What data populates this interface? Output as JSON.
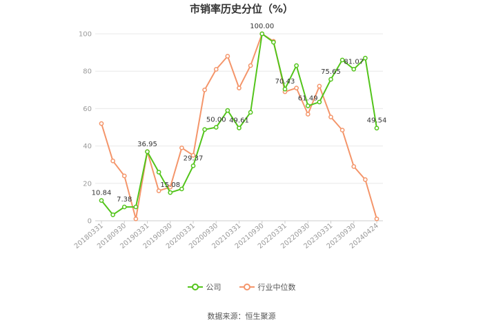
{
  "chart_data": {
    "type": "line",
    "title": "市销率历史分位（%）",
    "xlabel": "",
    "ylabel": "",
    "ylim": [
      0,
      100
    ],
    "yticks": [
      0,
      20,
      40,
      60,
      80,
      100
    ],
    "grid": true,
    "legend_position": "bottom",
    "x_ticks": [
      "20180331",
      "20180930",
      "20190331",
      "20190930",
      "20200331",
      "20200930",
      "20210331",
      "20210930",
      "20220331",
      "20220930",
      "20230331",
      "20230930",
      "20240424"
    ],
    "x": [
      "20180331",
      "20180630",
      "20180930",
      "20181231",
      "20190331",
      "20190630",
      "20190930",
      "20191231",
      "20200331",
      "20200630",
      "20200930",
      "20201231",
      "20210331",
      "20210630",
      "20210930",
      "20211231",
      "20220331",
      "20220630",
      "20220930",
      "20221231",
      "20230331",
      "20230630",
      "20230930",
      "20231231",
      "20240424"
    ],
    "series": [
      {
        "name": "公司",
        "color": "#52c41a",
        "values": [
          10.84,
          3.2,
          7.38,
          7.4,
          36.95,
          26.0,
          15.08,
          17.0,
          29.37,
          48.8,
          50.0,
          59.0,
          49.61,
          58.0,
          100.0,
          95.5,
          70.43,
          83.0,
          61.49,
          63.5,
          75.65,
          86.0,
          81.07,
          87.0,
          49.54
        ],
        "labels": {
          "0": "10.84",
          "2": "7.38",
          "4": "36.95",
          "6": "15.08",
          "8": "29.37",
          "10": "50.00",
          "12": "49.61",
          "14": "100.00",
          "16": "70.43",
          "18": "61.49",
          "20": "75.65",
          "22": "81.07",
          "24": "49.54"
        }
      },
      {
        "name": "行业中位数",
        "color": "#f4956a",
        "values": [
          52.0,
          32.0,
          24.0,
          1.0,
          37.0,
          16.0,
          18.0,
          39.0,
          35.0,
          70.0,
          81.0,
          88.0,
          71.0,
          83.0,
          100.0,
          96.0,
          69.0,
          71.0,
          57.0,
          72.0,
          55.5,
          48.5,
          29.0,
          22.0,
          1.0
        ]
      }
    ]
  },
  "legend": [
    {
      "label": "公司",
      "color": "#52c41a"
    },
    {
      "label": "行业中位数",
      "color": "#f4956a"
    }
  ],
  "source": "数据来源：恒生聚源"
}
